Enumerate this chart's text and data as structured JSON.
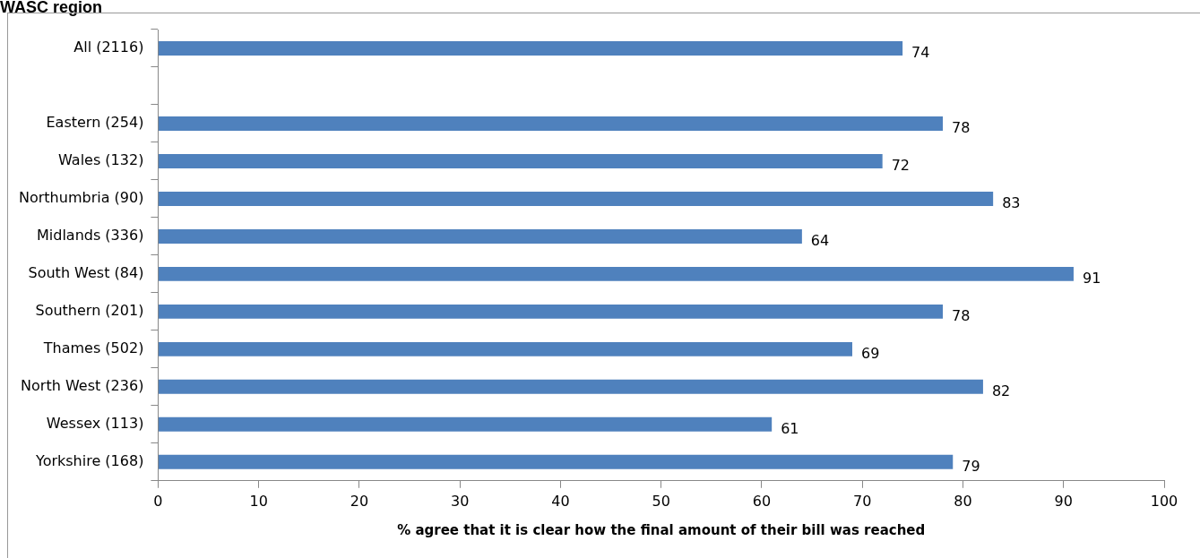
{
  "chart_data": {
    "type": "bar",
    "orientation": "horizontal",
    "title": "WASC region",
    "xlabel": "% agree that it is clear how the final amount of their bill was reached",
    "categories": [
      "All (2116)",
      null,
      "Eastern (254)",
      "Wales (132)",
      "Northumbria (90)",
      "Midlands (336)",
      "South West (84)",
      "Southern (201)",
      "Thames (502)",
      "North West (236)",
      "Wessex (113)",
      "Yorkshire (168)"
    ],
    "values": [
      74,
      null,
      78,
      72,
      83,
      64,
      91,
      78,
      69,
      82,
      61,
      79
    ],
    "color": "#4f81bd",
    "xlim": [
      0,
      100
    ],
    "xticks": [
      0,
      10,
      20,
      30,
      40,
      50,
      60,
      70,
      80,
      90,
      100
    ],
    "grid": false,
    "legend": false,
    "data_labels": true
  }
}
